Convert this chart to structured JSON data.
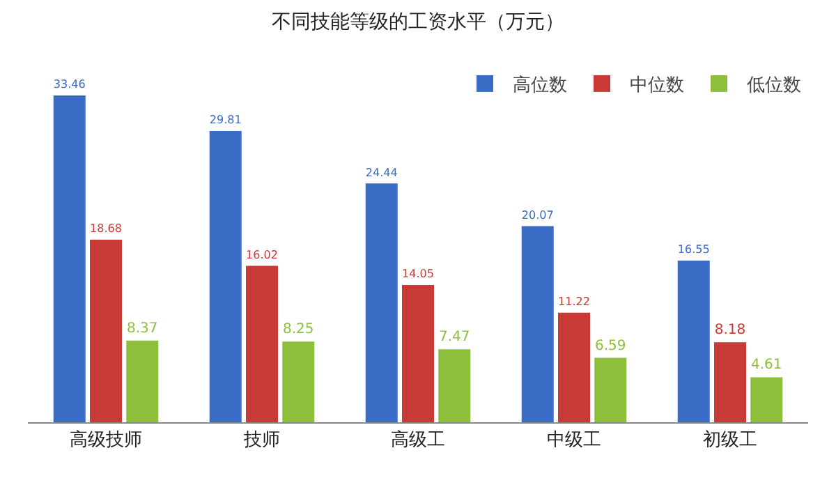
{
  "chart_data": {
    "type": "bar",
    "title": "不同技能等级的工资水平（万元）",
    "categories": [
      "高级技师",
      "技师",
      "高级工",
      "中级工",
      "初级工"
    ],
    "series": [
      {
        "name": "高位数",
        "color": "#3a6cc6",
        "values": [
          33.46,
          29.81,
          24.44,
          20.07,
          16.55
        ]
      },
      {
        "name": "中位数",
        "color": "#c73a36",
        "values": [
          18.68,
          16.02,
          14.05,
          11.22,
          8.18
        ]
      },
      {
        "name": "低位数",
        "color": "#8dbf3c",
        "values": [
          8.37,
          8.25,
          7.47,
          6.59,
          4.61
        ]
      }
    ],
    "data_labels": true,
    "legend": "top right",
    "grid": false
  }
}
